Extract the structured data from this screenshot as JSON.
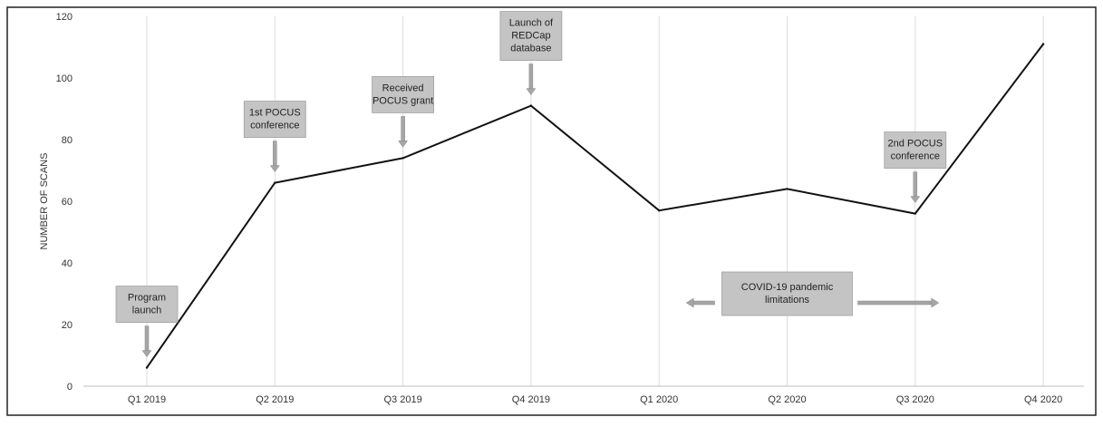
{
  "chart_data": {
    "type": "line",
    "categories": [
      "Q1 2019",
      "Q2 2019",
      "Q3 2019",
      "Q4 2019",
      "Q1 2020",
      "Q2 2020",
      "Q3 2020",
      "Q4 2020"
    ],
    "values": [
      6,
      66,
      74,
      91,
      57,
      64,
      56,
      111
    ],
    "title": "",
    "xlabel": "",
    "ylabel": "NUMBER OF SCANS",
    "ylim": [
      0,
      120
    ],
    "yticks": [
      0,
      20,
      40,
      60,
      80,
      100,
      120
    ],
    "grid": "vertical",
    "line_color": "#111111",
    "annotations": [
      {
        "lines": [
          "Program",
          "launch"
        ],
        "category_index": 0
      },
      {
        "lines": [
          "1st POCUS",
          "conference"
        ],
        "category_index": 1
      },
      {
        "lines": [
          "Received",
          "POCUS grant"
        ],
        "category_index": 2
      },
      {
        "lines": [
          "Launch of",
          "REDCap",
          "database"
        ],
        "category_index": 3
      },
      {
        "lines": [
          "2nd POCUS",
          "conference"
        ],
        "category_index": 6
      }
    ],
    "span_annotation": {
      "lines": [
        "COVID-19 pandemic",
        "limitations"
      ],
      "from_category_index": 4,
      "to_category_index": 6
    }
  }
}
